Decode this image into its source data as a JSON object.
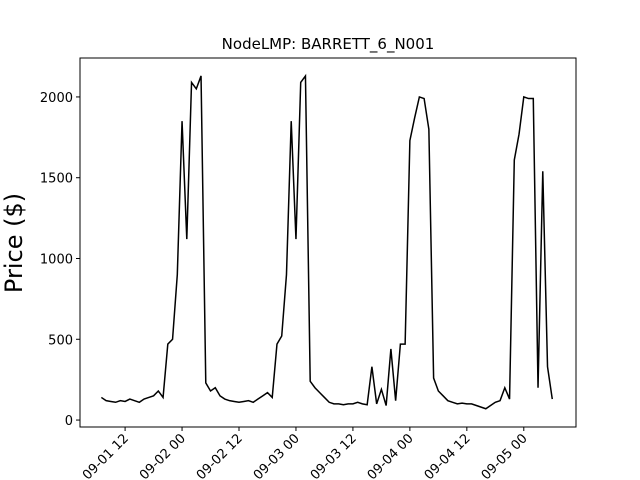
{
  "chart_data": {
    "type": "line",
    "title": "NodeLMP: BARRETT_6_N001",
    "y_label": "Price ($)",
    "x": [
      7,
      8,
      9,
      10,
      11,
      12,
      13,
      14,
      15,
      16,
      17,
      18,
      19,
      20,
      21,
      22,
      23,
      24,
      25,
      26,
      27,
      28,
      29,
      30,
      31,
      32,
      33,
      34,
      35,
      36,
      37,
      38,
      39,
      40,
      41,
      42,
      43,
      44,
      45,
      46,
      47,
      48,
      49,
      50,
      51,
      52,
      53,
      54,
      55,
      56,
      57,
      58,
      59,
      60,
      61,
      62,
      63,
      64,
      65,
      66,
      67,
      68,
      69,
      70,
      71,
      72,
      73,
      74,
      75,
      76,
      77,
      78,
      79,
      80,
      81,
      82,
      83,
      84,
      85,
      86,
      87,
      88,
      89,
      90,
      91,
      92,
      93,
      94,
      95,
      96,
      97,
      98,
      99,
      100,
      101,
      102
    ],
    "series": [
      {
        "name": "BARRETT_6_N001",
        "color": "#000000",
        "values": [
          140,
          120,
          115,
          110,
          120,
          115,
          130,
          120,
          110,
          130,
          140,
          150,
          180,
          140,
          470,
          500,
          900,
          1850,
          1120,
          2090,
          2050,
          2130,
          230,
          180,
          200,
          150,
          130,
          120,
          115,
          110,
          115,
          120,
          110,
          130,
          150,
          170,
          140,
          470,
          520,
          900,
          1850,
          1120,
          2090,
          2130,
          240,
          200,
          170,
          140,
          110,
          100,
          100,
          95,
          100,
          100,
          110,
          100,
          95,
          330,
          100,
          190,
          90,
          440,
          120,
          470,
          470,
          1730,
          1870,
          2000,
          1990,
          1800,
          260,
          180,
          150,
          120,
          110,
          100,
          105,
          100,
          100,
          90,
          80,
          70,
          90,
          110,
          120,
          200,
          130,
          1610,
          1770,
          2000,
          1990,
          1990,
          200,
          1540,
          330,
          130
        ]
      }
    ],
    "xlim": [
      2.5,
      107
    ],
    "ylim": [
      -43,
      2241
    ],
    "xticks": [
      {
        "value": 12,
        "label": "09-01 12"
      },
      {
        "value": 24,
        "label": "09-02 00"
      },
      {
        "value": 36,
        "label": "09-02 12"
      },
      {
        "value": 48,
        "label": "09-03 00"
      },
      {
        "value": 60,
        "label": "09-03 12"
      },
      {
        "value": 72,
        "label": "09-04 00"
      },
      {
        "value": 84,
        "label": "09-04 12"
      },
      {
        "value": 96,
        "label": "09-05 00"
      }
    ],
    "yticks": [
      0,
      500,
      1000,
      1500,
      2000
    ]
  }
}
